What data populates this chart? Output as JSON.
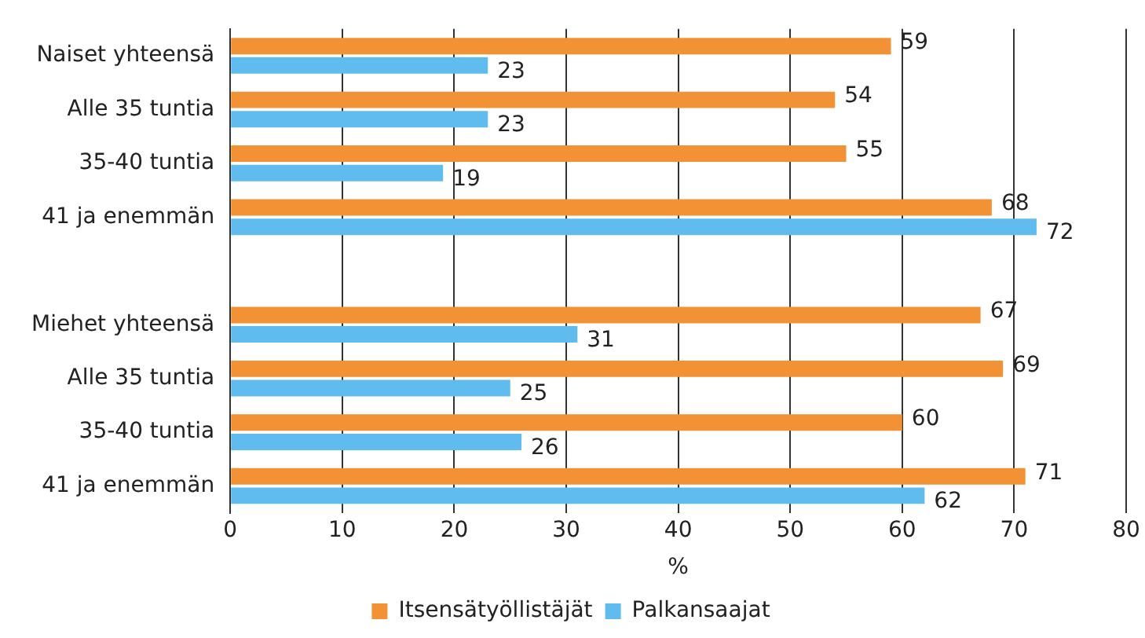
{
  "chart_data": {
    "type": "bar",
    "orientation": "horizontal",
    "xlabel": "%",
    "categories": [
      "Naiset yhteensä",
      "Alle 35 tuntia",
      "35-40 tuntia",
      "41 ja enemmän",
      null,
      "Miehet yhteensä",
      "Alle 35 tuntia",
      "35-40 tuntia",
      "41 ja enemmän"
    ],
    "series": [
      {
        "name": "Itsensätyöllistäjät",
        "color": "#f39234",
        "values": [
          59,
          54,
          55,
          68,
          null,
          67,
          69,
          60,
          71
        ]
      },
      {
        "name": "Palkansaajat",
        "color": "#60bbef",
        "values": [
          23,
          23,
          19,
          72,
          null,
          31,
          25,
          26,
          62
        ]
      }
    ],
    "xlim": [
      0,
      80
    ],
    "xticks": [
      0,
      10,
      20,
      30,
      40,
      50,
      60,
      70,
      80
    ],
    "grid": "x",
    "legend": "bottom",
    "data_labels": true
  }
}
